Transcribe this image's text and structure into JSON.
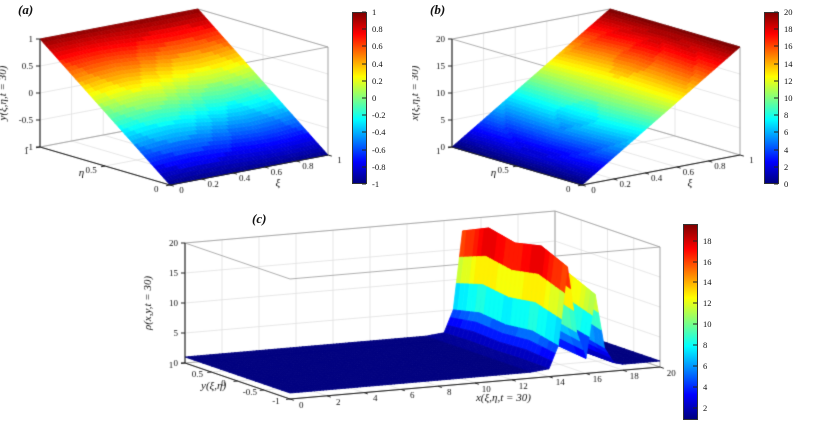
{
  "figure": {
    "background": "#ffffff",
    "panels": [
      {
        "label": "(a)",
        "chart_index": 0
      },
      {
        "label": "(b)",
        "chart_index": 1
      },
      {
        "label": "(c)",
        "chart_index": 2
      }
    ]
  },
  "chart_data": [
    {
      "type": "surface",
      "title": "",
      "xlabel": "ξ",
      "ylabel": "η",
      "zlabel": "y(ξ,η,t = 30)",
      "x_range": [
        0,
        1
      ],
      "y_range": [
        0,
        1
      ],
      "z_range": [
        -1,
        1
      ],
      "x_ticks": [
        0,
        0.2,
        0.4,
        0.6,
        0.8,
        1
      ],
      "y_ticks": [
        0,
        0.5,
        1
      ],
      "z_ticks": [
        -1,
        -0.5,
        0,
        0.5,
        1
      ],
      "grid": true,
      "colormap": "jet",
      "colorbar": {
        "position": "right",
        "range": [
          -1,
          1
        ],
        "ticks": [
          -1,
          -0.8,
          -0.6,
          -0.4,
          -0.2,
          0,
          0.2,
          0.4,
          0.6,
          0.8,
          1
        ]
      },
      "x": [
        0,
        0.125,
        0.25,
        0.375,
        0.5,
        0.625,
        0.75,
        0.875,
        1
      ],
      "y": [
        0,
        0.25,
        0.5,
        0.75,
        1
      ],
      "z": [
        [
          -1,
          -1,
          -1,
          -1,
          -1,
          -1,
          -1,
          -1,
          -1
        ],
        [
          -0.5,
          -0.45,
          -0.43,
          -0.45,
          -0.5,
          -0.55,
          -0.57,
          -0.55,
          -0.5
        ],
        [
          0,
          0.07,
          0.1,
          0.07,
          0,
          -0.07,
          -0.1,
          -0.07,
          0
        ],
        [
          0.5,
          0.55,
          0.57,
          0.55,
          0.5,
          0.45,
          0.43,
          0.45,
          0.5
        ],
        [
          1,
          1,
          1,
          1,
          1,
          1,
          1,
          1,
          1
        ]
      ]
    },
    {
      "type": "surface",
      "title": "",
      "xlabel": "ξ",
      "ylabel": "η",
      "zlabel": "x(ξ,η,t = 30)",
      "x_range": [
        0,
        1
      ],
      "y_range": [
        0,
        1
      ],
      "z_range": [
        0,
        20
      ],
      "x_ticks": [
        0,
        0.2,
        0.4,
        0.6,
        0.8,
        1
      ],
      "y_ticks": [
        0,
        0.5,
        1
      ],
      "z_ticks": [
        0,
        5,
        10,
        15,
        20
      ],
      "grid": true,
      "colormap": "jet",
      "colorbar": {
        "position": "right",
        "range": [
          0,
          20
        ],
        "ticks": [
          0,
          2,
          4,
          6,
          8,
          10,
          12,
          14,
          16,
          18,
          20
        ]
      },
      "x": [
        0,
        0.125,
        0.25,
        0.375,
        0.5,
        0.625,
        0.75,
        0.875,
        1
      ],
      "y": [
        0,
        0.25,
        0.5,
        0.75,
        1
      ],
      "z": [
        [
          0,
          2.5,
          5,
          7.5,
          10,
          12.5,
          15,
          17.5,
          20
        ],
        [
          0,
          2.3,
          4.7,
          7.2,
          9.9,
          12.7,
          15.4,
          17.9,
          20
        ],
        [
          0,
          2.1,
          4.5,
          7.0,
          9.8,
          12.9,
          15.7,
          18.3,
          20
        ],
        [
          0,
          2.3,
          4.7,
          7.2,
          9.9,
          12.7,
          15.4,
          17.9,
          20
        ],
        [
          0,
          2.5,
          5,
          7.5,
          10,
          12.5,
          15,
          17.5,
          20
        ]
      ]
    },
    {
      "type": "surface",
      "title": "",
      "xlabel": "x(ξ,η,t = 30)",
      "ylabel": "y(ξ,η)",
      "zlabel": "ρ(x,y,t = 30)",
      "x_range": [
        0,
        20
      ],
      "y_range": [
        -1,
        1
      ],
      "z_range": [
        0,
        20
      ],
      "x_ticks": [
        0,
        2,
        4,
        6,
        8,
        10,
        12,
        14,
        16,
        18,
        20
      ],
      "y_ticks": [
        -1,
        -0.5,
        0,
        0.5,
        1
      ],
      "z_ticks": [
        0,
        5,
        10,
        15,
        20
      ],
      "grid": true,
      "colormap": "jet",
      "colorbar": {
        "position": "right",
        "range": [
          0.8,
          19.6
        ],
        "ticks": [
          2,
          4,
          6,
          8,
          10,
          12,
          14,
          16,
          18
        ]
      },
      "x": [
        0,
        2,
        4,
        6,
        8,
        10,
        12,
        13,
        14,
        14.5,
        15,
        15.5,
        16,
        16.5,
        17,
        17.5,
        18,
        19,
        20
      ],
      "y": [
        -1,
        -0.5,
        0,
        0.5,
        1
      ],
      "z": [
        [
          1,
          1,
          1,
          1,
          1,
          1,
          1,
          1,
          1.3,
          5,
          18,
          7,
          2.5,
          13,
          4,
          1.4,
          1,
          1,
          1
        ],
        [
          1,
          1,
          1,
          1,
          1,
          1,
          1,
          1,
          1.4,
          6,
          20,
          8,
          3,
          15,
          5,
          1.5,
          1,
          1,
          1
        ],
        [
          1,
          1,
          1,
          1,
          1,
          1,
          1,
          1,
          1.3,
          5.5,
          19,
          7.5,
          2.8,
          14,
          4.5,
          1.4,
          1,
          1,
          1
        ],
        [
          1,
          1,
          1,
          1,
          1,
          1,
          1,
          1,
          1.4,
          6,
          20,
          8,
          3,
          15,
          5,
          1.5,
          1,
          1,
          1
        ],
        [
          1,
          1,
          1,
          1,
          1,
          1,
          1,
          1,
          1.3,
          5,
          18,
          7,
          2.5,
          13,
          4,
          1.4,
          1,
          1,
          1
        ]
      ]
    }
  ]
}
